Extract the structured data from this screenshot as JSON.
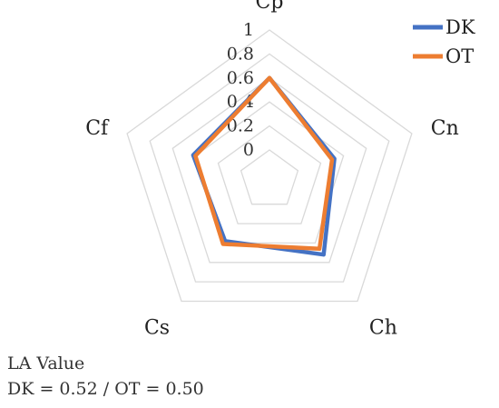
{
  "chart_data": {
    "type": "radar",
    "axes": [
      "Cp",
      "Cn",
      "Ch",
      "Cs",
      "Cf"
    ],
    "range": [
      0,
      1
    ],
    "ticks": [
      "0",
      "0.2",
      "0.4",
      "0.6",
      "0.8",
      "1"
    ],
    "grid": true,
    "legend": "top-right",
    "series": [
      {
        "name": "DK",
        "color": "#4472c4",
        "values": [
          0.6,
          0.32,
          0.52,
          0.38,
          0.42
        ]
      },
      {
        "name": "OT",
        "color": "#ed7d31",
        "values": [
          0.6,
          0.3,
          0.46,
          0.41,
          0.4
        ]
      }
    ]
  },
  "annotation": {
    "line1": "LA Value",
    "line2": "DK = 0.52 / OT = 0.50"
  }
}
